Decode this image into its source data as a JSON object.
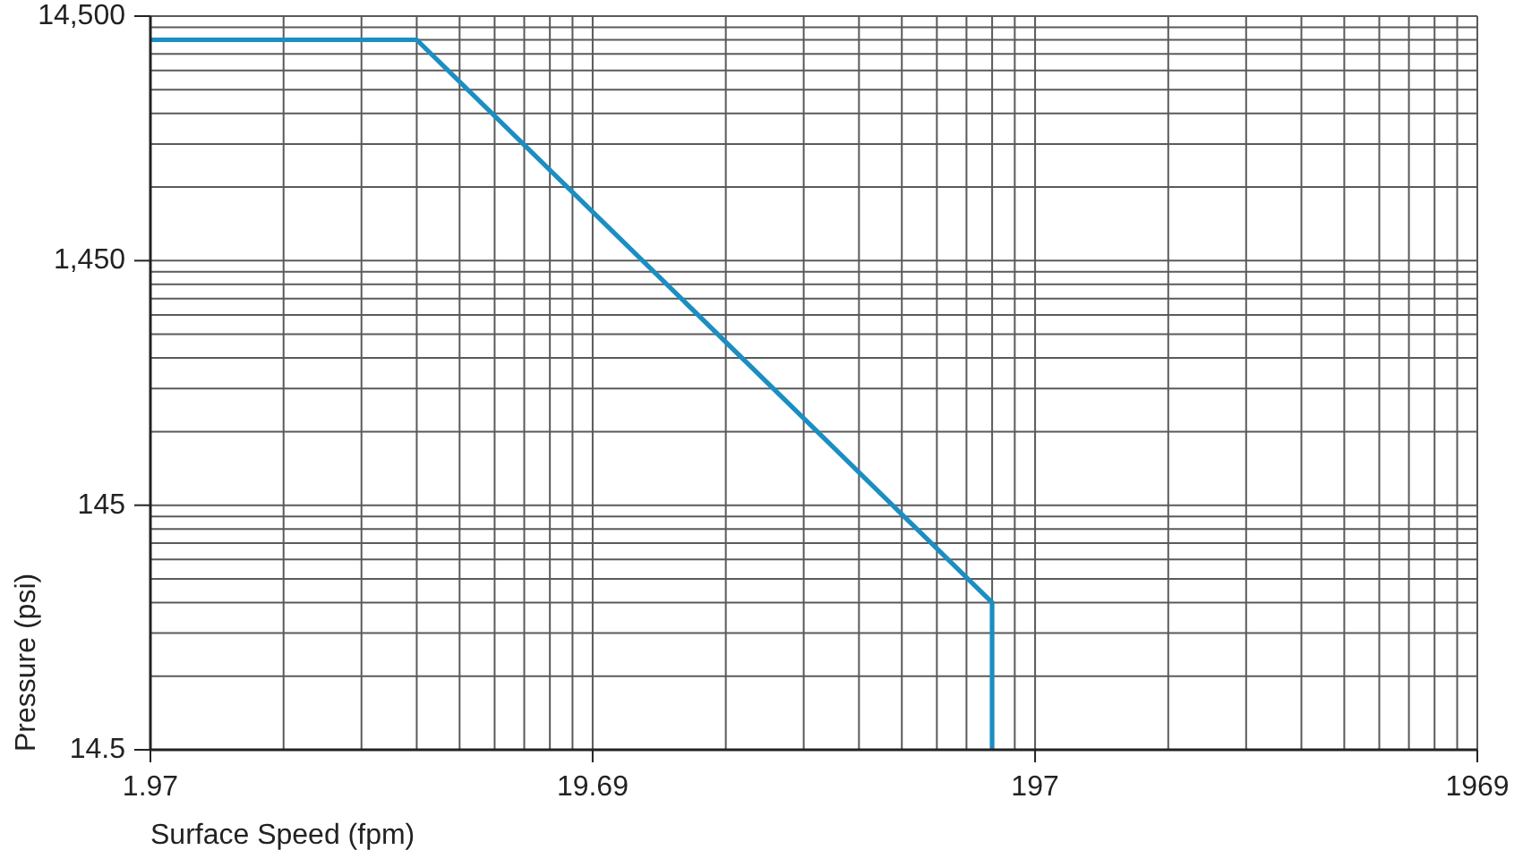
{
  "chart_data": {
    "type": "line",
    "xlabel": "Surface Speed (fpm)",
    "ylabel": "Pressure (psi)",
    "x": [
      1.97,
      7.88,
      157.5,
      157.5
    ],
    "series": [
      {
        "color": "#1b8ec2",
        "values": [
          11600,
          11600,
          58,
          14.5
        ]
      }
    ],
    "log": "xy",
    "xlim": [
      1.97,
      1969
    ],
    "ylim": [
      14.5,
      14500
    ],
    "xticks": [
      1.97,
      {
        "value": 3.94,
        "label": null
      },
      {
        "value": 5.91,
        "label": null
      },
      {
        "value": 7.88,
        "label": null
      },
      {
        "value": 9.85,
        "label": null
      },
      {
        "value": 11.82,
        "label": null
      },
      {
        "value": 13.79,
        "label": null
      },
      {
        "value": 15.76,
        "label": null
      },
      {
        "value": 17.73,
        "label": null
      },
      19.69,
      {
        "value": 39.38,
        "label": null
      },
      {
        "value": 59.07,
        "label": null
      },
      {
        "value": 78.76,
        "label": null
      },
      {
        "value": 98.45,
        "label": null
      },
      {
        "value": 118.14,
        "label": null
      },
      {
        "value": 137.83,
        "label": null
      },
      {
        "value": 157.52,
        "label": null
      },
      {
        "value": 177.21,
        "label": null
      },
      197,
      {
        "value": 394,
        "label": null
      },
      {
        "value": 591,
        "label": null
      },
      {
        "value": 788,
        "label": null
      },
      {
        "value": 985,
        "label": null
      },
      {
        "value": 1182,
        "label": null
      },
      {
        "value": 1379,
        "label": null
      },
      {
        "value": 1576,
        "label": null
      },
      {
        "value": 1773,
        "label": null
      },
      1969
    ],
    "yticks": [
      14.5,
      {
        "value": 29,
        "label": null
      },
      {
        "value": 43.5,
        "label": null
      },
      {
        "value": 58,
        "label": null
      },
      {
        "value": 72.5,
        "label": null
      },
      {
        "value": 87,
        "label": null
      },
      {
        "value": 101.5,
        "label": null
      },
      {
        "value": 116,
        "label": null
      },
      {
        "value": 130.5,
        "label": null
      },
      145,
      {
        "value": 290,
        "label": null
      },
      {
        "value": 435,
        "label": null
      },
      {
        "value": 580,
        "label": null
      },
      {
        "value": 725,
        "label": null
      },
      {
        "value": 870,
        "label": null
      },
      {
        "value": 1015,
        "label": null
      },
      {
        "value": 1160,
        "label": null
      },
      {
        "value": 1305,
        "label": null
      },
      {
        "value": 1450,
        "label": "1,450"
      },
      {
        "value": 2900,
        "label": null
      },
      {
        "value": 4350,
        "label": null
      },
      {
        "value": 5800,
        "label": null
      },
      {
        "value": 7250,
        "label": null
      },
      {
        "value": 8700,
        "label": null
      },
      {
        "value": 10150,
        "label": null
      },
      {
        "value": 11600,
        "label": null
      },
      {
        "value": 13050,
        "label": null
      },
      {
        "value": 14500,
        "label": "14,500"
      }
    ],
    "grid": true
  }
}
